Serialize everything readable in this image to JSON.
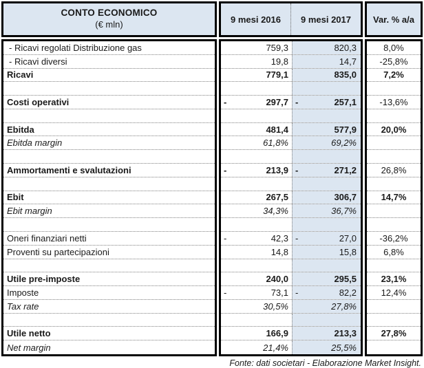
{
  "header": {
    "col1_title": "CONTO ECONOMICO",
    "col1_subtitle": "(€ mln)",
    "col2016": "9 mesi 2016",
    "col2017": "9 mesi 2017",
    "col_var": "Var. % a/a"
  },
  "colors": {
    "header_bg": "#dce6f1",
    "col2017_bg": "#dce6f1",
    "border": "#000000"
  },
  "rows": [
    {
      "label": "- Ricavi regolati Distribuzione gas",
      "style": "sub",
      "m2016": "",
      "v2016": "759,3",
      "m2017": "",
      "v2017": "820,3",
      "var": "8,0%",
      "var_bold": false
    },
    {
      "label": "- Ricavi diversi",
      "style": "sub",
      "m2016": "",
      "v2016": "19,8",
      "m2017": "",
      "v2017": "14,7",
      "var": "-25,8%",
      "var_bold": false
    },
    {
      "label": "Ricavi",
      "style": "bold",
      "m2016": "",
      "v2016": "779,1",
      "m2017": "",
      "v2017": "835,0",
      "var": "7,2%",
      "var_bold": true
    },
    {
      "label": "",
      "style": "empty",
      "m2016": "",
      "v2016": "",
      "m2017": "",
      "v2017": "",
      "var": "",
      "var_bold": false
    },
    {
      "label": "Costi operativi",
      "style": "bold",
      "m2016": "-",
      "v2016": "297,7",
      "m2017": "-",
      "v2017": "257,1",
      "var": "-13,6%",
      "var_bold": false
    },
    {
      "label": "",
      "style": "empty",
      "m2016": "",
      "v2016": "",
      "m2017": "",
      "v2017": "",
      "var": "",
      "var_bold": false
    },
    {
      "label": "Ebitda",
      "style": "bold",
      "m2016": "",
      "v2016": "481,4",
      "m2017": "",
      "v2017": "577,9",
      "var": "20,0%",
      "var_bold": true
    },
    {
      "label": "Ebitda margin",
      "style": "italic",
      "m2016": "",
      "v2016": "61,8%",
      "m2017": "",
      "v2017": "69,2%",
      "var": "",
      "var_bold": false
    },
    {
      "label": "",
      "style": "empty",
      "m2016": "",
      "v2016": "",
      "m2017": "",
      "v2017": "",
      "var": "",
      "var_bold": false
    },
    {
      "label": "Ammortamenti e svalutazioni",
      "style": "bold",
      "m2016": "-",
      "v2016": "213,9",
      "m2017": "-",
      "v2017": "271,2",
      "var": "26,8%",
      "var_bold": false
    },
    {
      "label": "",
      "style": "empty",
      "m2016": "",
      "v2016": "",
      "m2017": "",
      "v2017": "",
      "var": "",
      "var_bold": false
    },
    {
      "label": "Ebit",
      "style": "bold",
      "m2016": "",
      "v2016": "267,5",
      "m2017": "",
      "v2017": "306,7",
      "var": "14,7%",
      "var_bold": true
    },
    {
      "label": "Ebit margin",
      "style": "italic",
      "m2016": "",
      "v2016": "34,3%",
      "m2017": "",
      "v2017": "36,7%",
      "var": "",
      "var_bold": false
    },
    {
      "label": "",
      "style": "empty",
      "m2016": "",
      "v2016": "",
      "m2017": "",
      "v2017": "",
      "var": "",
      "var_bold": false
    },
    {
      "label": "Oneri finanziari netti",
      "style": "normal",
      "m2016": "-",
      "v2016": "42,3",
      "m2017": "-",
      "v2017": "27,0",
      "var": "-36,2%",
      "var_bold": false
    },
    {
      "label": "Proventi su partecipazioni",
      "style": "normal",
      "m2016": "",
      "v2016": "14,8",
      "m2017": "",
      "v2017": "15,8",
      "var": "6,8%",
      "var_bold": false
    },
    {
      "label": "",
      "style": "empty",
      "m2016": "",
      "v2016": "",
      "m2017": "",
      "v2017": "",
      "var": "",
      "var_bold": false
    },
    {
      "label": "Utile pre-imposte",
      "style": "bold",
      "m2016": "",
      "v2016": "240,0",
      "m2017": "",
      "v2017": "295,5",
      "var": "23,1%",
      "var_bold": true
    },
    {
      "label": "Imposte",
      "style": "normal",
      "m2016": "-",
      "v2016": "73,1",
      "m2017": "-",
      "v2017": "82,2",
      "var": "12,4%",
      "var_bold": false
    },
    {
      "label": "Tax rate",
      "style": "italic",
      "m2016": "",
      "v2016": "30,5%",
      "m2017": "",
      "v2017": "27,8%",
      "var": "",
      "var_bold": false
    },
    {
      "label": "",
      "style": "empty",
      "m2016": "",
      "v2016": "",
      "m2017": "",
      "v2017": "",
      "var": "",
      "var_bold": false
    },
    {
      "label": "Utile netto",
      "style": "bold",
      "m2016": "",
      "v2016": "166,9",
      "m2017": "",
      "v2017": "213,3",
      "var": "27,8%",
      "var_bold": true
    },
    {
      "label": "Net margin",
      "style": "italic",
      "m2016": "",
      "v2016": "21,4%",
      "m2017": "",
      "v2017": "25,5%",
      "var": "",
      "var_bold": false
    }
  ],
  "footer": "Fonte: dati societari - Elaborazione Market Insight."
}
